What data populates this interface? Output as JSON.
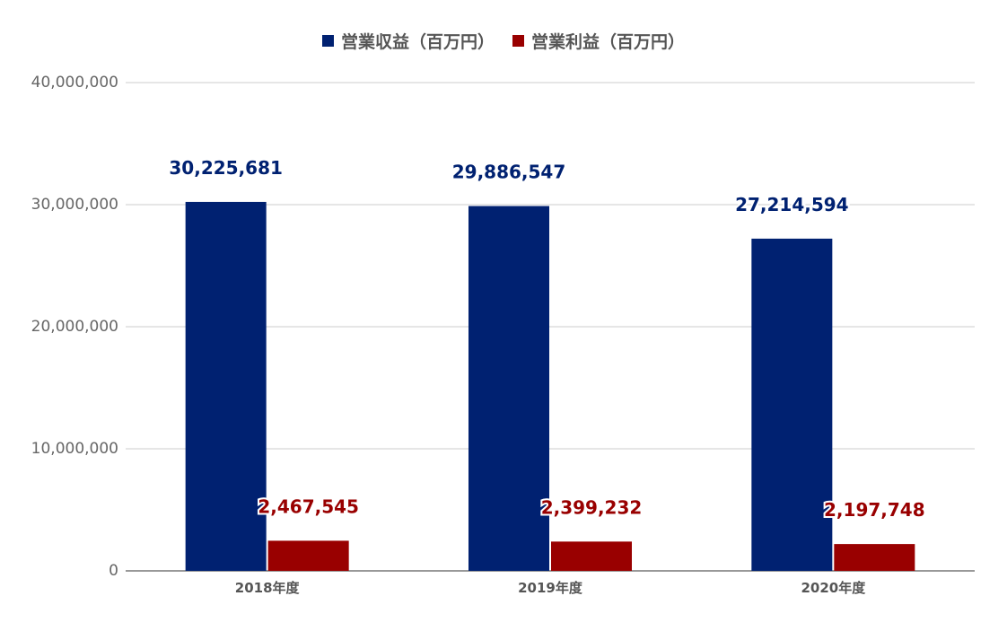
{
  "chart_data": {
    "type": "bar",
    "categories": [
      "2018年度",
      "2019年度",
      "2020年度"
    ],
    "series": [
      {
        "name": "営業収益（百万円）",
        "color": "#002171",
        "values": [
          30225681,
          29886547,
          27214594
        ],
        "labels": [
          "30,225,681",
          "29,886,547",
          "27,214,594"
        ]
      },
      {
        "name": "営業利益（百万円）",
        "color": "#990000",
        "values": [
          2467545,
          2399232,
          2197748
        ],
        "labels": [
          "2,467,545",
          "2,399,232",
          "2,197,748"
        ]
      }
    ],
    "ylim": [
      0,
      40000000
    ],
    "yticks": [
      0,
      10000000,
      20000000,
      30000000,
      40000000
    ],
    "ytick_labels": [
      "0",
      "10,000,000",
      "20,000,000",
      "30,000,000",
      "40,000,000"
    ],
    "grid": true,
    "legend_position": "top-center",
    "title": "",
    "xlabel": "",
    "ylabel": ""
  }
}
